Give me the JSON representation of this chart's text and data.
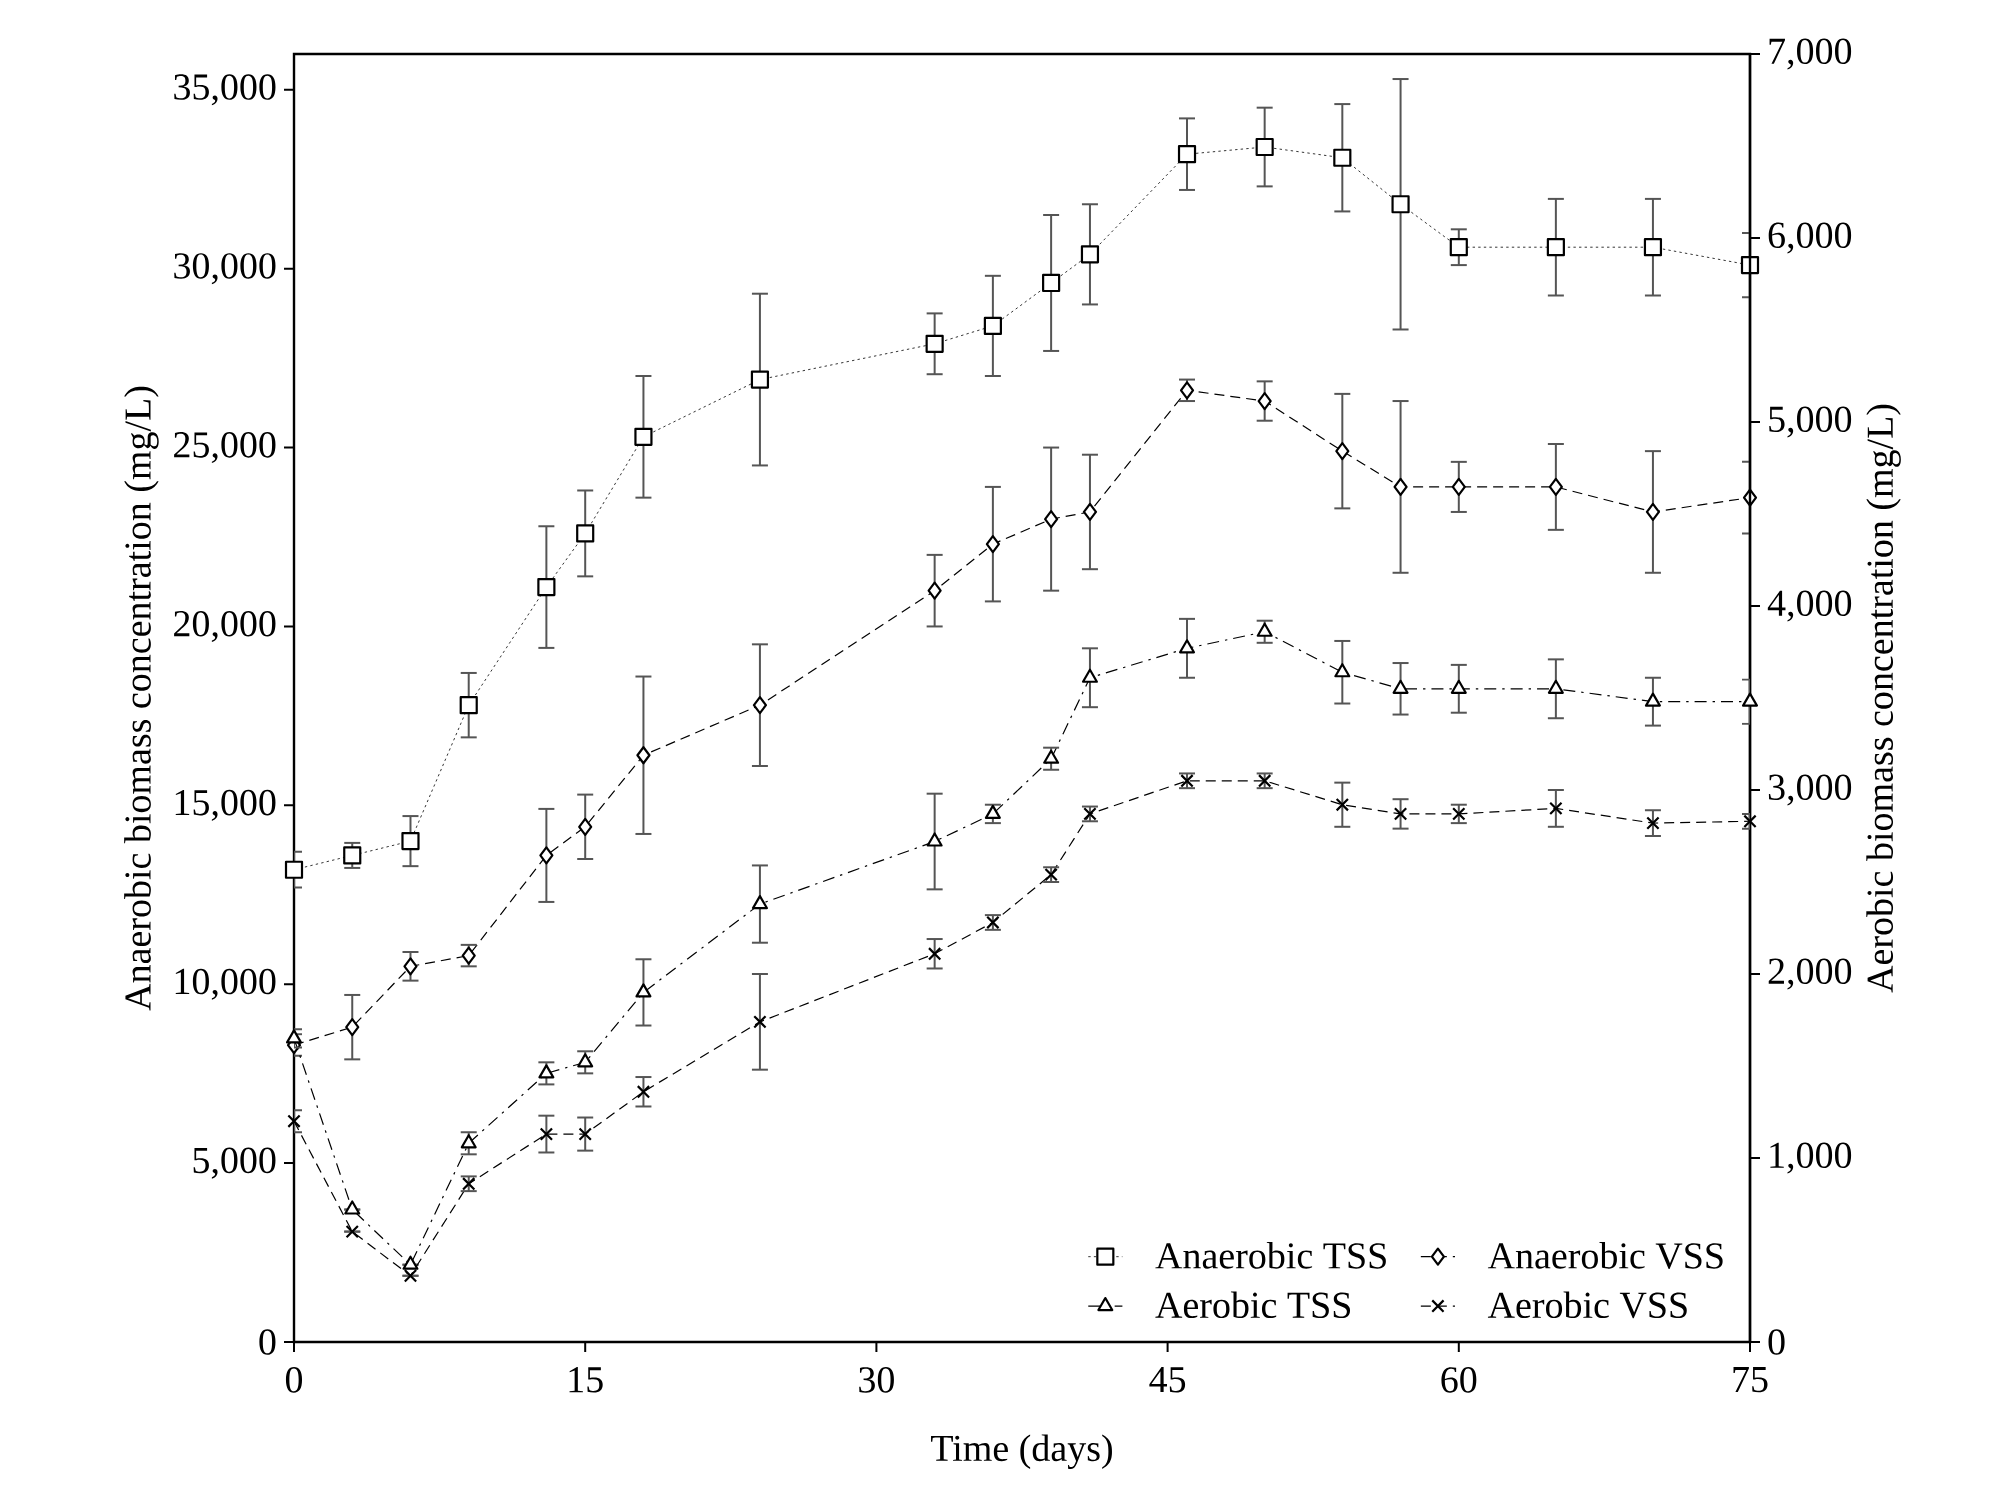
{
  "chart_data": {
    "type": "line",
    "xlabel": "Time (days)",
    "ylabel": "Anaerobic biomass concentration (mg/L)",
    "y2label": "Aerobic biomass concentration (mg/L)",
    "x": [
      0,
      3,
      6,
      9,
      13,
      15,
      18,
      24,
      33,
      36,
      39,
      41,
      46,
      50,
      54,
      57,
      60,
      65,
      70,
      75
    ],
    "xlim": [
      0,
      75
    ],
    "xticks": [
      0,
      15,
      30,
      45,
      60,
      75
    ],
    "ylim": [
      0,
      36000
    ],
    "yticks": [
      {
        "value": 0,
        "label": "0"
      },
      {
        "value": 5000,
        "label": "5,000"
      },
      {
        "value": 10000,
        "label": "10,000"
      },
      {
        "value": 15000,
        "label": "15,000"
      },
      {
        "value": 20000,
        "label": "20,000"
      },
      {
        "value": 25000,
        "label": "25,000"
      },
      {
        "value": 30000,
        "label": "30,000"
      },
      {
        "value": 35000,
        "label": "35,000"
      }
    ],
    "y2lim": [
      0,
      7000
    ],
    "y2ticks": [
      {
        "value": 0,
        "label": "0"
      },
      {
        "value": 1000,
        "label": "1,000"
      },
      {
        "value": 2000,
        "label": "2,000"
      },
      {
        "value": 3000,
        "label": "3,000"
      },
      {
        "value": 4000,
        "label": "4,000"
      },
      {
        "value": 5000,
        "label": "5,000"
      },
      {
        "value": 6000,
        "label": "6,000"
      },
      {
        "value": 7000,
        "label": "7,000"
      }
    ],
    "legend": "bottom right",
    "series": [
      {
        "name": "Anaerobic TSS",
        "color": "#000000",
        "marker": "square",
        "line_style": "dotted",
        "values": [
          13200,
          13600,
          14000,
          17800,
          21100,
          22600,
          25300,
          26900,
          27900,
          28400,
          29600,
          30400,
          33200,
          33400,
          33100,
          31800,
          30600,
          30600,
          30600,
          30100
        ],
        "errors": [
          500,
          350,
          700,
          900,
          1700,
          1200,
          1700,
          2400,
          850,
          1400,
          1900,
          1400,
          1000,
          1100,
          1500,
          3500,
          500,
          1350,
          1350,
          900
        ]
      },
      {
        "name": "Anaerobic VSS",
        "color": "#000000",
        "marker": "diamond",
        "line_style": "dashed",
        "values": [
          8300,
          8800,
          10500,
          10800,
          13600,
          14400,
          16400,
          17800,
          21000,
          22300,
          23000,
          23200,
          26600,
          26300,
          24900,
          23900,
          23900,
          23900,
          23200,
          23600
        ],
        "errors": [
          300,
          900,
          400,
          300,
          1300,
          900,
          2200,
          1700,
          1000,
          1600,
          2000,
          1600,
          300,
          550,
          1600,
          2400,
          700,
          1200,
          1700,
          1000
        ]
      },
      {
        "name": "Aerobic TSS",
        "color": "#000000",
        "marker": "triangle",
        "line_style": "dashdot",
        "axis": "y2",
        "values": [
          1650,
          720,
          420,
          1080,
          1460,
          1520,
          1900,
          2380,
          2720,
          2870,
          3170,
          3610,
          3770,
          3860,
          3640,
          3550,
          3550,
          3550,
          3480,
          3480
        ],
        "errors": [
          50,
          null,
          null,
          60,
          60,
          60,
          180,
          210,
          260,
          50,
          60,
          160,
          160,
          60,
          170,
          140,
          130,
          160,
          130,
          120
        ]
      },
      {
        "name": "Aerobic VSS",
        "color": "#000000",
        "marker": "cross",
        "line_style": "dashed",
        "axis": "y2",
        "values": [
          1200,
          600,
          360,
          860,
          1130,
          1130,
          1360,
          1740,
          2110,
          2280,
          2540,
          2870,
          3050,
          3050,
          2920,
          2870,
          2870,
          2900,
          2820,
          2830
        ],
        "errors": [
          60,
          null,
          null,
          40,
          100,
          90,
          80,
          260,
          80,
          40,
          40,
          40,
          40,
          40,
          120,
          80,
          50,
          100,
          70,
          40
        ]
      }
    ]
  }
}
